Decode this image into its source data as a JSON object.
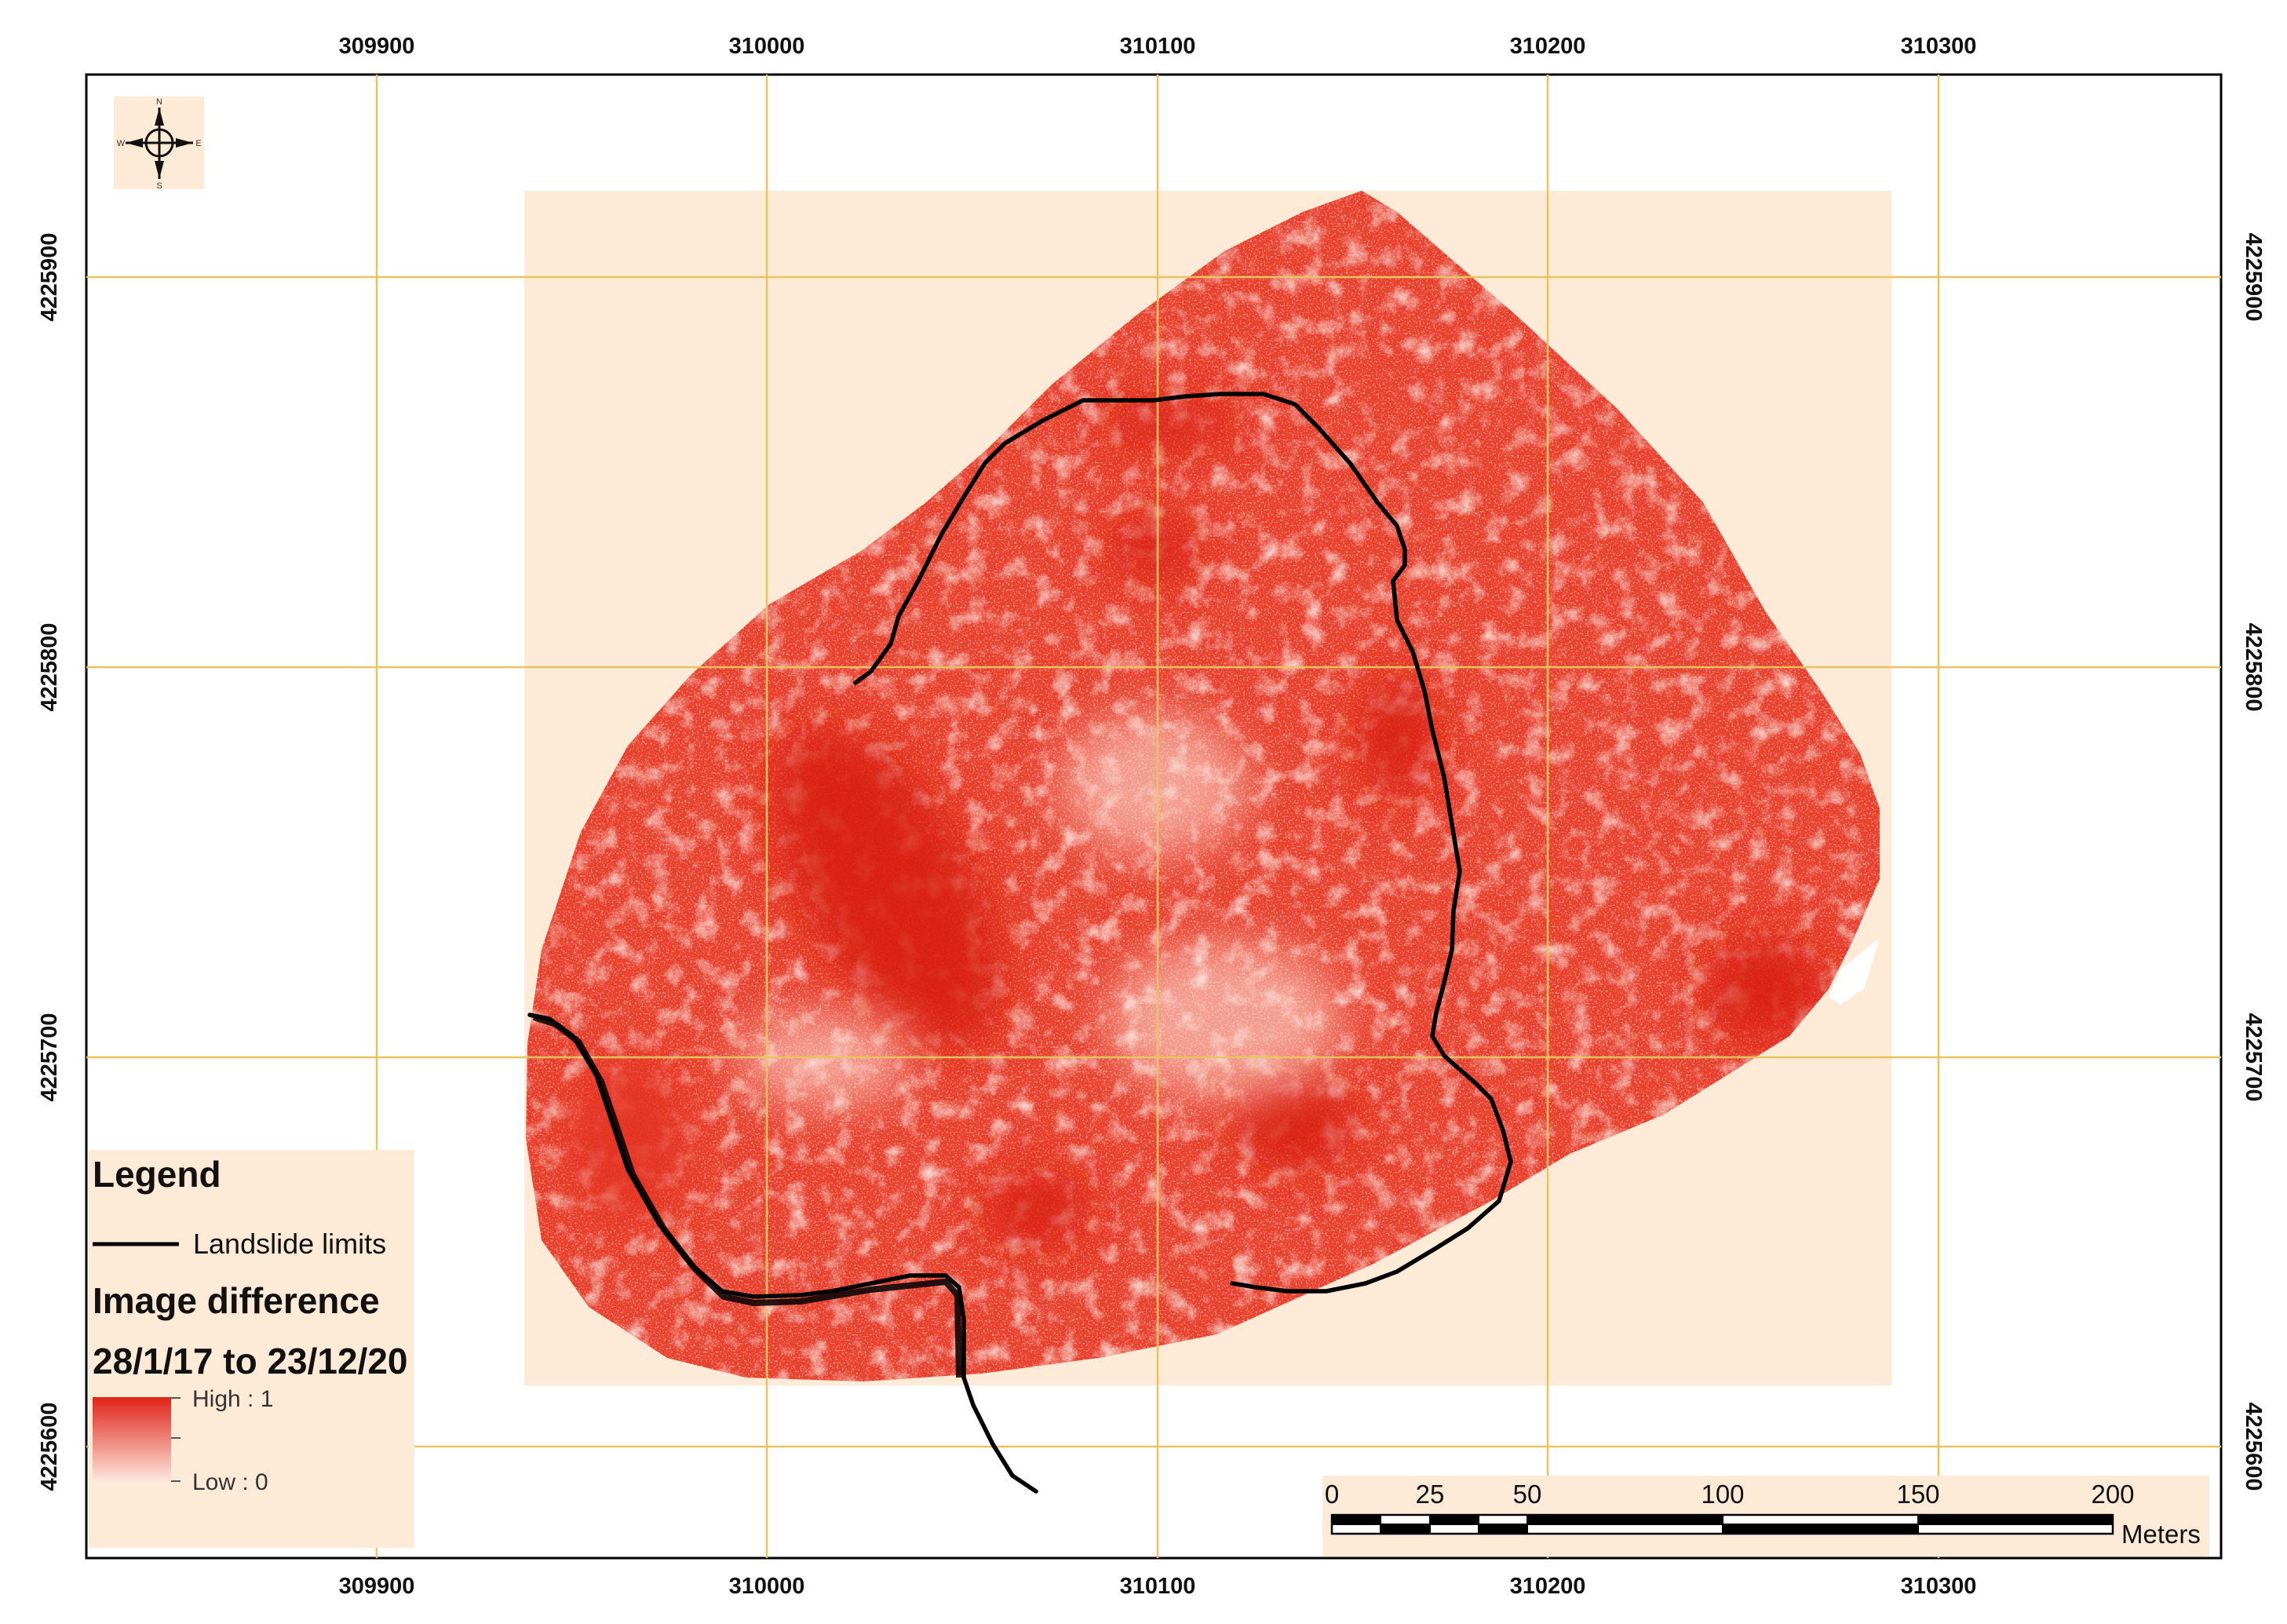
{
  "map": {
    "grid_x_labels": [
      "309900",
      "310000",
      "310100",
      "310200",
      "310300"
    ],
    "grid_y_labels": [
      "4225900",
      "4225800",
      "4225700",
      "4225600"
    ],
    "compass": {
      "icon": "north-arrow-icon",
      "n": "N",
      "s": "S",
      "e": "E",
      "w": "W"
    },
    "legend": {
      "title": "Legend",
      "line_item": "Landslide limits",
      "raster_title": "Image difference",
      "raster_period": "28/1/17 to 23/12/20",
      "high_label": "High : 1",
      "low_label": "Low : 0"
    },
    "scale_bar": {
      "labels": [
        "0",
        "25",
        "50",
        "100",
        "150",
        "200"
      ],
      "unit": "Meters"
    },
    "colors": {
      "raster_high": "#e02318",
      "raster_low": "#fde8e0",
      "background_fill": "#feebd7",
      "grid": "#e7c45f",
      "landslide_line": "#000000"
    }
  }
}
